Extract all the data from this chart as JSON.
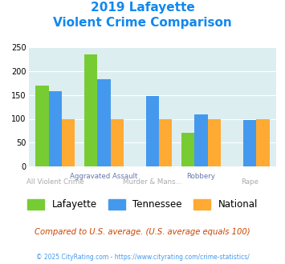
{
  "title_line1": "2019 Lafayette",
  "title_line2": "Violent Crime Comparison",
  "lafayette": [
    170,
    235,
    null,
    70,
    null
  ],
  "tennessee": [
    158,
    183,
    148,
    110,
    97
  ],
  "national": [
    100,
    100,
    100,
    100,
    100
  ],
  "lafayette_color": "#77cc33",
  "tennessee_color": "#4499ee",
  "national_color": "#ffaa33",
  "ylim": [
    0,
    250
  ],
  "yticks": [
    0,
    50,
    100,
    150,
    200,
    250
  ],
  "background_color": "#ddeef0",
  "top_labels": [
    "",
    "Aggravated Assault",
    "",
    "Robbery",
    ""
  ],
  "bottom_labels": [
    "All Violent Crime",
    "",
    "Murder & Mans...",
    "",
    "Rape"
  ],
  "legend_labels": [
    "Lafayette",
    "Tennessee",
    "National"
  ],
  "footer_text": "Compared to U.S. average. (U.S. average equals 100)",
  "copyright_text": "© 2025 CityRating.com - https://www.cityrating.com/crime-statistics/",
  "title_color": "#1188ee",
  "footer_color": "#cc4400",
  "copyright_color": "#4499ee"
}
